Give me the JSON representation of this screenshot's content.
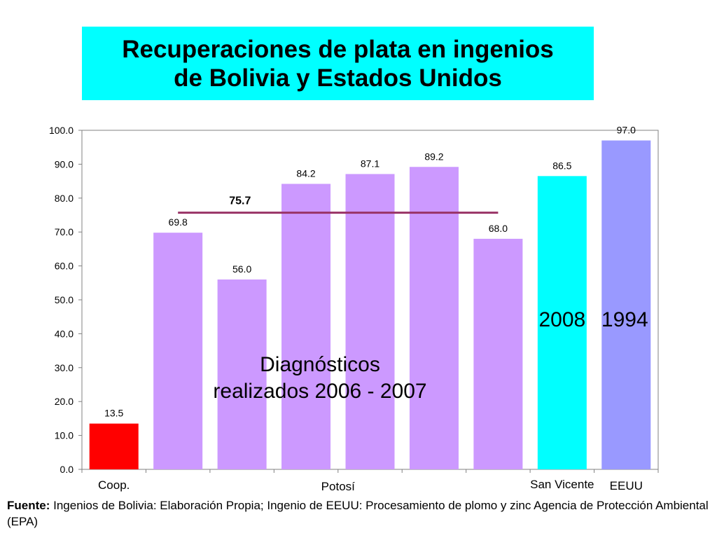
{
  "title": "Recuperaciones de plata en ingenios\nde Bolivia y Estados Unidos",
  "chart_data": {
    "type": "bar",
    "values": [
      13.5,
      69.8,
      56.0,
      84.2,
      87.1,
      89.2,
      68.0,
      86.5,
      97.0
    ],
    "value_labels": [
      "13.5",
      "69.8",
      "56.0",
      "84.2",
      "87.1",
      "89.2",
      "68.0",
      "86.5",
      "97.0"
    ],
    "bar_colors": [
      "#ff0000",
      "#cc99ff",
      "#cc99ff",
      "#cc99ff",
      "#cc99ff",
      "#cc99ff",
      "#cc99ff",
      "#00ffff",
      "#9999ff"
    ],
    "ylim": [
      0,
      100
    ],
    "yticks": [
      "0.0",
      "10.0",
      "20.0",
      "30.0",
      "40.0",
      "50.0",
      "60.0",
      "70.0",
      "80.0",
      "90.0",
      "100.0"
    ],
    "category_labels": [
      {
        "text": "Coop.",
        "bar": 0
      },
      {
        "text": "Potosí",
        "bar": 3.5
      },
      {
        "text": "San Vicente",
        "bar": 7
      },
      {
        "text": "EEUU",
        "bar": 8
      }
    ],
    "average_line": {
      "value": 75.7,
      "label": "75.7",
      "from_bar": 1,
      "to_bar": 6,
      "color": "#993366"
    },
    "annotations": {
      "diagnosticos": "Diagnósticos\nrealizados 2006 - 2007",
      "year_2008": "2008",
      "year_1994": "1994"
    }
  },
  "footer": {
    "label": "Fuente:",
    "text": " Ingenios de Bolivia: Elaboración Propia; Ingenio de EEUU: Procesamiento de plomo y zinc Agencia de Protección Ambiental (EPA)"
  }
}
